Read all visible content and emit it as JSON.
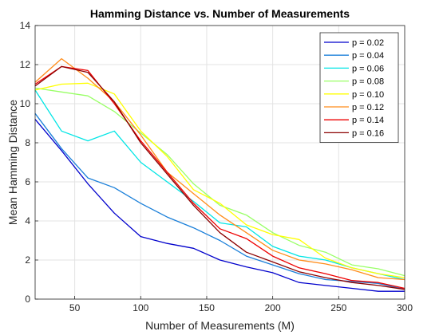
{
  "chart_data": {
    "type": "line",
    "title": "Hamming Distance vs. Number of Measurements",
    "xlabel": "Number of Measurements (M)",
    "ylabel": "Mean Hamming Distance",
    "xlim": [
      20,
      300
    ],
    "ylim": [
      0,
      14
    ],
    "xticks": [
      50,
      100,
      150,
      200,
      250,
      300
    ],
    "yticks": [
      0,
      2,
      4,
      6,
      8,
      10,
      12,
      14
    ],
    "grid": true,
    "legend_position": "top-right",
    "x": [
      20,
      40,
      60,
      80,
      100,
      120,
      140,
      160,
      180,
      200,
      220,
      240,
      260,
      280,
      300
    ],
    "series": [
      {
        "name": "p = 0.02",
        "color": "#0000cc",
        "values": [
          9.2,
          7.6,
          5.9,
          4.4,
          3.2,
          2.85,
          2.6,
          2.0,
          1.65,
          1.35,
          0.85,
          0.7,
          0.55,
          0.4,
          0.4
        ]
      },
      {
        "name": "p = 0.04",
        "color": "#1a7fd9",
        "values": [
          9.5,
          7.7,
          6.2,
          5.7,
          4.9,
          4.2,
          3.65,
          3.0,
          2.2,
          1.75,
          1.3,
          1.0,
          0.9,
          0.8,
          0.5
        ]
      },
      {
        "name": "p = 0.06",
        "color": "#00e5e5",
        "values": [
          10.7,
          8.6,
          8.1,
          8.6,
          7.0,
          6.0,
          5.0,
          3.9,
          3.7,
          2.7,
          2.2,
          2.0,
          1.6,
          1.3,
          1.0
        ]
      },
      {
        "name": "p = 0.08",
        "color": "#99ff66",
        "values": [
          10.8,
          10.6,
          10.4,
          9.6,
          8.5,
          7.4,
          5.9,
          4.8,
          4.3,
          3.4,
          2.75,
          2.4,
          1.75,
          1.55,
          1.2
        ]
      },
      {
        "name": "p = 0.10",
        "color": "#ffff00",
        "values": [
          10.7,
          11.0,
          11.05,
          10.5,
          8.6,
          7.3,
          5.6,
          4.9,
          3.8,
          3.3,
          3.05,
          2.1,
          1.6,
          1.3,
          1.1
        ]
      },
      {
        "name": "p = 0.12",
        "color": "#ff8c1a",
        "values": [
          11.1,
          12.3,
          11.3,
          10.1,
          8.4,
          6.5,
          5.4,
          4.3,
          3.4,
          2.5,
          2.0,
          1.8,
          1.5,
          1.1,
          1.0
        ]
      },
      {
        "name": "p = 0.14",
        "color": "#ee0000",
        "values": [
          11.0,
          11.9,
          11.7,
          10.0,
          8.1,
          6.5,
          4.9,
          3.6,
          3.1,
          2.2,
          1.6,
          1.3,
          0.95,
          0.85,
          0.55
        ]
      },
      {
        "name": "p = 0.16",
        "color": "#8b0000",
        "values": [
          10.9,
          11.9,
          11.6,
          10.1,
          8.0,
          6.4,
          4.8,
          3.4,
          2.4,
          1.9,
          1.4,
          1.1,
          0.85,
          0.7,
          0.5
        ]
      }
    ]
  }
}
